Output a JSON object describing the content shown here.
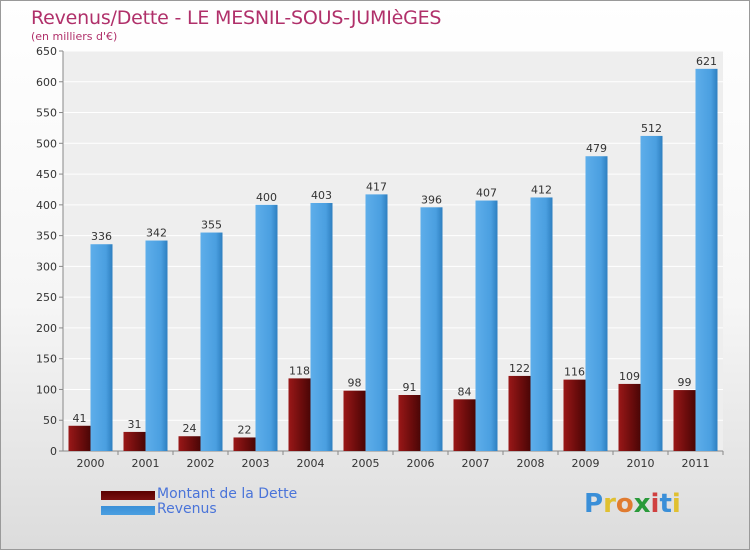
{
  "title": "Revenus/Dette - LE MESNIL-SOUS-JUMIèGES",
  "subtitle": "(en milliers d'€)",
  "colors": {
    "dette": "#7a1010",
    "revenus": "#4a9fe0",
    "title": "#b0306a",
    "legend_text": "#4a74d9"
  },
  "chart_data": {
    "type": "bar",
    "categories": [
      "2000",
      "2001",
      "2002",
      "2003",
      "2004",
      "2005",
      "2006",
      "2007",
      "2008",
      "2009",
      "2010",
      "2011"
    ],
    "series": [
      {
        "name": "Montant de la Dette",
        "values": [
          41,
          31,
          24,
          22,
          118,
          98,
          91,
          84,
          122,
          116,
          109,
          99
        ]
      },
      {
        "name": "Revenus",
        "values": [
          336,
          342,
          355,
          400,
          403,
          417,
          396,
          407,
          412,
          479,
          512,
          621
        ]
      }
    ],
    "ylim": [
      0,
      650
    ],
    "yticks": [
      0,
      50,
      100,
      150,
      200,
      250,
      300,
      350,
      400,
      450,
      500,
      550,
      600,
      650
    ],
    "grid": true,
    "legend_position": "bottom-left"
  },
  "legend": [
    {
      "label": "Montant de la Dette",
      "color": "#7a1010"
    },
    {
      "label": "Revenus",
      "color": "#4a9fe0"
    }
  ],
  "logo": {
    "letters": [
      "P",
      "r",
      "o",
      "x",
      "i",
      "t",
      "i"
    ],
    "colors": [
      "#3a8fd8",
      "#e0c030",
      "#e07b30",
      "#2a9a3a",
      "#d04040",
      "#3a8fd8",
      "#e0c030"
    ]
  }
}
